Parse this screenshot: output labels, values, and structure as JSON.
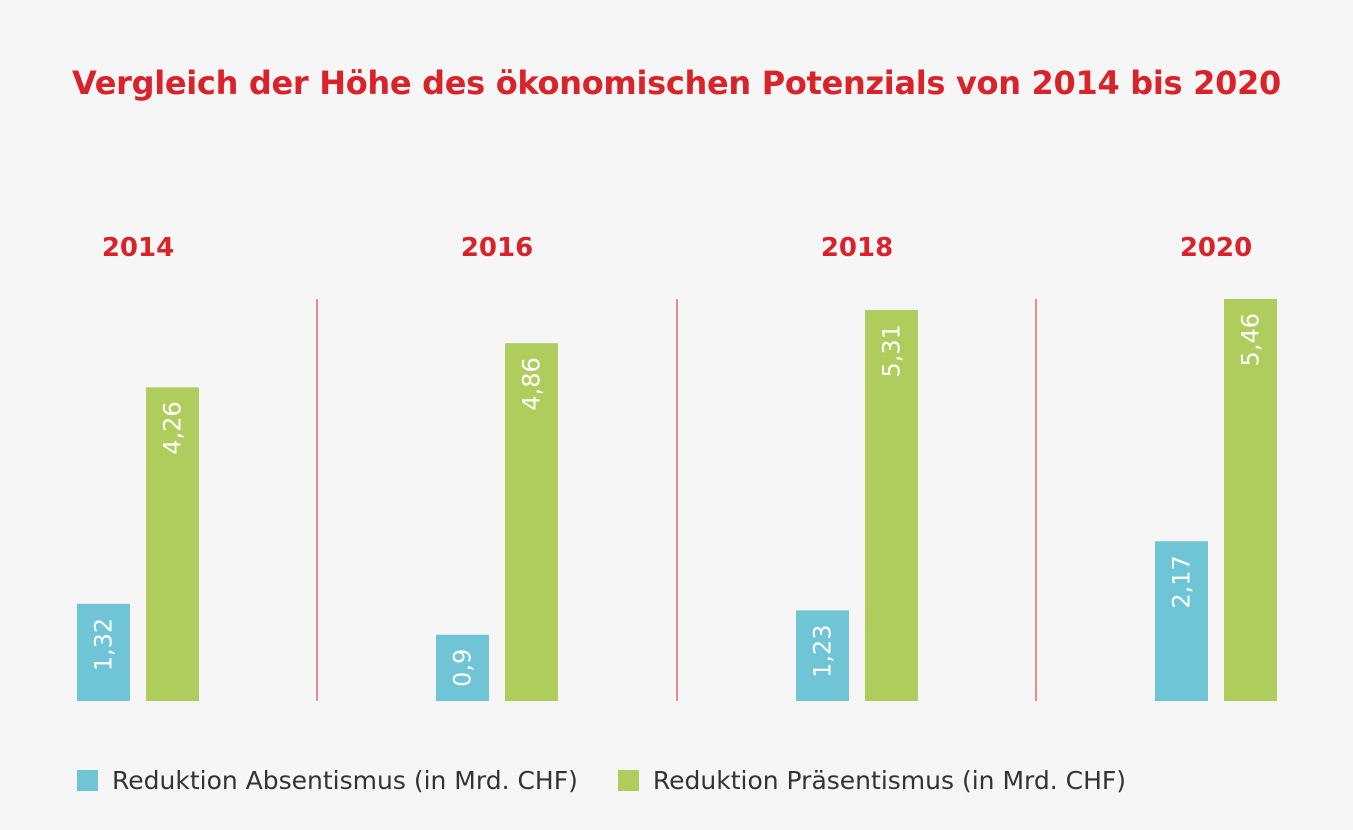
{
  "colors": {
    "accent": "#d9232a",
    "absentismus": "#6fc4d6",
    "praesentismus": "#afcd5d",
    "background": "#f6f6f6",
    "text": "#333333"
  },
  "chart_data": {
    "type": "bar",
    "title": "Vergleich der Höhe des ökonomischen Potenzials von 2014 bis 2020",
    "categories": [
      "2014",
      "2016",
      "2018",
      "2020"
    ],
    "series": [
      {
        "name": "Reduktion Absentismus (in Mrd. CHF)",
        "values": [
          1.32,
          0.9,
          1.23,
          2.17
        ],
        "labels": [
          "1,32",
          "0,9",
          "1,23",
          "2,17"
        ]
      },
      {
        "name": "Reduktion Präsentismus (in Mrd. CHF)",
        "values": [
          4.26,
          4.86,
          5.31,
          5.46
        ],
        "labels": [
          "4,26",
          "4,86",
          "5,31",
          "5,46"
        ]
      }
    ],
    "ylim": [
      0,
      5.46
    ],
    "grid": false,
    "legend_position": "bottom-left"
  }
}
